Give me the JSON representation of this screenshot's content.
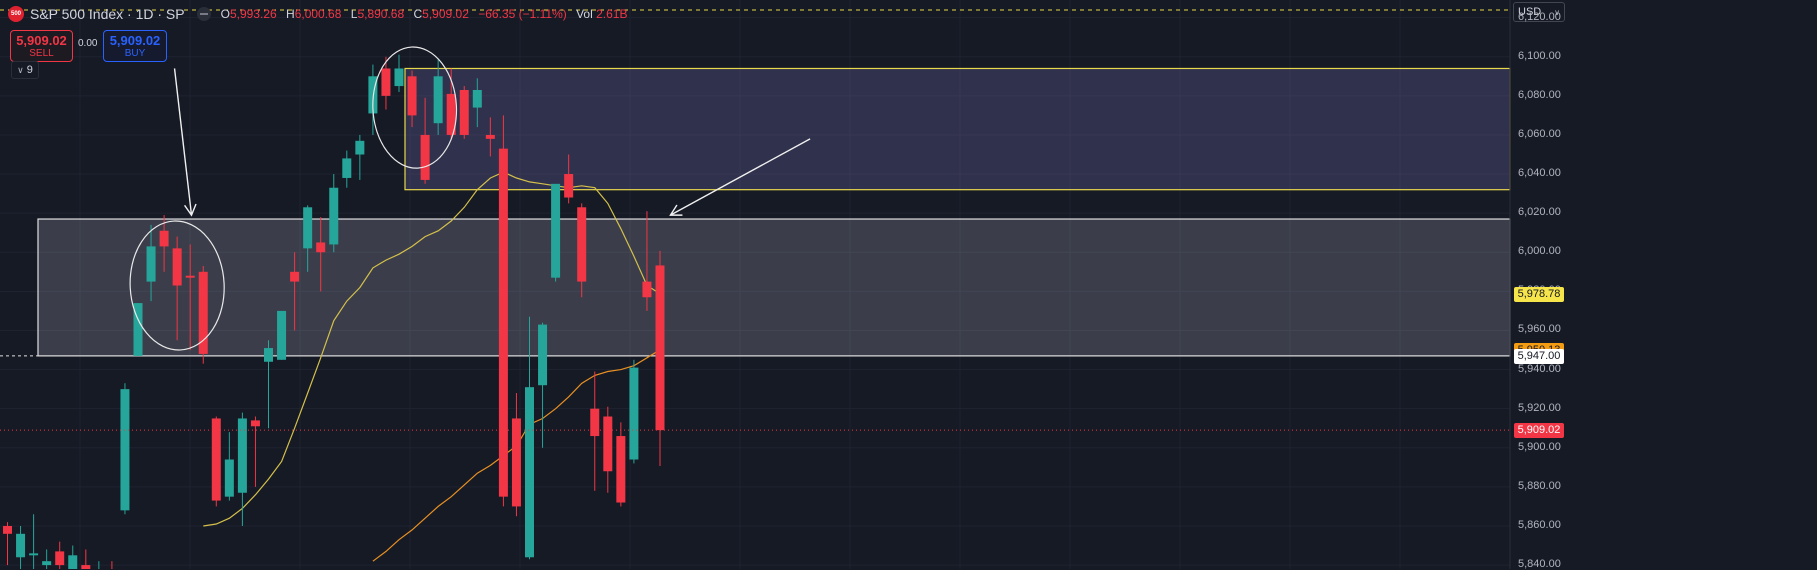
{
  "header": {
    "logo_text": "500",
    "symbol_title": "S&P 500 Index · 1D · SP",
    "ohlc": {
      "o_label": "O",
      "o_value": "5,993.26",
      "h_label": "H",
      "h_value": "6,000.68",
      "l_label": "L",
      "l_value": "5,890.68",
      "c_label": "C",
      "c_value": "5,909.02",
      "change": "−66.35 (−1.11%)",
      "vol_label": "Vol",
      "vol_value": "2.61B"
    }
  },
  "trade": {
    "sell_price": "5,909.02",
    "sell_label": "SELL",
    "spread": "0.00",
    "buy_price": "5,909.02",
    "buy_label": "BUY"
  },
  "indicators_count": "9",
  "currency": "USD",
  "colors": {
    "background": "#161a25",
    "up": "#26a69a",
    "down": "#f23645",
    "ma_fast": "#d4c04a",
    "ma_slow": "#e89022",
    "zone_upper_border": "#e8d84c",
    "zone_lower_border": "#e0e0e0"
  },
  "price_axis": {
    "ticks": [
      "6,120.00",
      "6,100.00",
      "6,080.00",
      "6,060.00",
      "6,040.00",
      "6,020.00",
      "6,000.00",
      "5,980.00",
      "5,960.00",
      "5,940.00",
      "5,920.00",
      "5,900.00",
      "5,880.00",
      "5,860.00",
      "5,840.00"
    ],
    "labels": [
      {
        "text": "5,978.78",
        "value": 5978.78,
        "bg": "#f5e44a",
        "fg": "#131722"
      },
      {
        "text": "5,950.13",
        "value": 5950.13,
        "bg": "#f39c12",
        "fg": "#131722"
      },
      {
        "text": "5,947.00",
        "value": 5947.0,
        "bg": "#ffffff",
        "fg": "#131722"
      },
      {
        "text": "5,909.02",
        "value": 5909.02,
        "bg": "#f23645",
        "fg": "#ffffff"
      }
    ]
  },
  "chart_data": {
    "type": "candlestick",
    "ylim": [
      5838,
      6128
    ],
    "last_price": 5909.02,
    "zones": [
      {
        "name": "upper-zone",
        "from": 6032,
        "to": 6094
      },
      {
        "name": "lower-zone",
        "from": 5947,
        "to": 6017
      }
    ],
    "candles": [
      {
        "o": 5860,
        "h": 5862,
        "l": 5840,
        "c": 5856
      },
      {
        "o": 5844,
        "h": 5860,
        "l": 5835,
        "c": 5856
      },
      {
        "o": 5845,
        "h": 5866,
        "l": 5836,
        "c": 5846
      },
      {
        "o": 5840,
        "h": 5848,
        "l": 5832,
        "c": 5842
      },
      {
        "o": 5847,
        "h": 5852,
        "l": 5835,
        "c": 5840
      },
      {
        "o": 5835,
        "h": 5850,
        "l": 5830,
        "c": 5845
      },
      {
        "o": 5840,
        "h": 5848,
        "l": 5830,
        "c": 5836
      },
      {
        "o": 5832,
        "h": 5842,
        "l": 5825,
        "c": 5838
      },
      {
        "o": 5835,
        "h": 5842,
        "l": 5828,
        "c": 5834
      },
      {
        "o": 5868,
        "h": 5933,
        "l": 5866,
        "c": 5930
      },
      {
        "o": 5947,
        "h": 5974,
        "l": 5947,
        "c": 5974
      },
      {
        "o": 5985,
        "h": 6014,
        "l": 5975,
        "c": 6003
      },
      {
        "o": 6011,
        "h": 6019,
        "l": 5990,
        "c": 6003
      },
      {
        "o": 6002,
        "h": 6008,
        "l": 5955,
        "c": 5983
      },
      {
        "o": 5988,
        "h": 6004,
        "l": 5950,
        "c": 5987
      },
      {
        "o": 5990,
        "h": 5993,
        "l": 5943,
        "c": 5948
      },
      {
        "o": 5915,
        "h": 5916,
        "l": 5870,
        "c": 5873
      },
      {
        "o": 5875,
        "h": 5908,
        "l": 5873,
        "c": 5894
      },
      {
        "o": 5877,
        "h": 5918,
        "l": 5860,
        "c": 5915
      },
      {
        "o": 5914,
        "h": 5916,
        "l": 5880,
        "c": 5911
      },
      {
        "o": 5944,
        "h": 5955,
        "l": 5910,
        "c": 5951
      },
      {
        "o": 5945,
        "h": 5968,
        "l": 5945,
        "c": 5970
      },
      {
        "o": 5990,
        "h": 6000,
        "l": 5960,
        "c": 5985
      },
      {
        "o": 6002,
        "h": 6024,
        "l": 5990,
        "c": 6023
      },
      {
        "o": 6005,
        "h": 6018,
        "l": 5980,
        "c": 6000
      },
      {
        "o": 6004,
        "h": 6040,
        "l": 6000,
        "c": 6033
      },
      {
        "o": 6038,
        "h": 6052,
        "l": 6033,
        "c": 6048
      },
      {
        "o": 6050,
        "h": 6060,
        "l": 6037,
        "c": 6057
      },
      {
        "o": 6071,
        "h": 6096,
        "l": 6060,
        "c": 6090
      },
      {
        "o": 6094,
        "h": 6100,
        "l": 6073,
        "c": 6080
      },
      {
        "o": 6085,
        "h": 6101,
        "l": 6082,
        "c": 6094
      },
      {
        "o": 6090,
        "h": 6093,
        "l": 6064,
        "c": 6070
      },
      {
        "o": 6060,
        "h": 6079,
        "l": 6035,
        "c": 6037
      },
      {
        "o": 6066,
        "h": 6099,
        "l": 6060,
        "c": 6090
      },
      {
        "o": 6081,
        "h": 6094,
        "l": 6058,
        "c": 6060
      },
      {
        "o": 6083,
        "h": 6085,
        "l": 6058,
        "c": 6060
      },
      {
        "o": 6074,
        "h": 6089,
        "l": 6064,
        "c": 6083
      },
      {
        "o": 6060,
        "h": 6069,
        "l": 6049,
        "c": 6058
      },
      {
        "o": 6053,
        "h": 6070,
        "l": 5870,
        "c": 5875
      },
      {
        "o": 5915,
        "h": 5928,
        "l": 5865,
        "c": 5870
      },
      {
        "o": 5844,
        "h": 5967,
        "l": 5843,
        "c": 5931
      },
      {
        "o": 5932,
        "h": 5964,
        "l": 5900,
        "c": 5963
      },
      {
        "o": 5987,
        "h": 6034,
        "l": 5985,
        "c": 6035
      },
      {
        "o": 6040,
        "h": 6050,
        "l": 6025,
        "c": 6028
      },
      {
        "o": 6023,
        "h": 6025,
        "l": 5977,
        "c": 5985
      },
      {
        "o": 5920,
        "h": 5939,
        "l": 5878,
        "c": 5906
      },
      {
        "o": 5916,
        "h": 5921,
        "l": 5877,
        "c": 5888
      },
      {
        "o": 5906,
        "h": 5913,
        "l": 5870,
        "c": 5872
      },
      {
        "o": 5894,
        "h": 5945,
        "l": 5892,
        "c": 5941
      },
      {
        "o": 5985,
        "h": 6021,
        "l": 5970,
        "c": 5977
      },
      {
        "o": 5993.26,
        "h": 6000.68,
        "l": 5890.68,
        "c": 5909.02
      }
    ],
    "ma_fast": [
      [
        15,
        5860
      ],
      [
        16,
        5861
      ],
      [
        17,
        5864
      ],
      [
        18,
        5869
      ],
      [
        19,
        5876
      ],
      [
        20,
        5884
      ],
      [
        21,
        5893
      ],
      [
        22,
        5910
      ],
      [
        23,
        5928
      ],
      [
        24,
        5946
      ],
      [
        25,
        5965
      ],
      [
        26,
        5975
      ],
      [
        27,
        5982
      ],
      [
        28,
        5992
      ],
      [
        29,
        5996
      ],
      [
        30,
        5999
      ],
      [
        31,
        6003
      ],
      [
        32,
        6008
      ],
      [
        33,
        6011
      ],
      [
        34,
        6016
      ],
      [
        35,
        6023
      ],
      [
        36,
        6032
      ],
      [
        37,
        6038
      ],
      [
        38,
        6041
      ],
      [
        39,
        6038
      ],
      [
        40,
        6036
      ],
      [
        41,
        6035
      ],
      [
        42,
        6034
      ],
      [
        43,
        6033
      ],
      [
        44,
        6034
      ],
      [
        45,
        6033
      ],
      [
        46,
        6025
      ],
      [
        47,
        6012
      ],
      [
        48,
        5998
      ],
      [
        49,
        5983
      ],
      [
        50,
        5978.78
      ]
    ],
    "ma_slow": [
      [
        28,
        5842
      ],
      [
        29,
        5847
      ],
      [
        30,
        5853
      ],
      [
        31,
        5858
      ],
      [
        32,
        5864
      ],
      [
        33,
        5870
      ],
      [
        34,
        5875
      ],
      [
        35,
        5881
      ],
      [
        36,
        5887
      ],
      [
        37,
        5891
      ],
      [
        38,
        5896
      ],
      [
        39,
        5901
      ],
      [
        40,
        5912
      ],
      [
        41,
        5915
      ],
      [
        42,
        5920
      ],
      [
        43,
        5926
      ],
      [
        44,
        5933
      ],
      [
        45,
        5937
      ],
      [
        46,
        5939
      ],
      [
        47,
        5940
      ],
      [
        48,
        5942
      ],
      [
        49,
        5946
      ],
      [
        50,
        5950.13
      ]
    ],
    "drawings": {
      "ellipses": [
        {
          "name": "left-ellipse",
          "cx_index": 13.0,
          "cy": 5983,
          "rx_index": 3.6,
          "ry": 33
        },
        {
          "name": "top-ellipse",
          "cx_index": 31.2,
          "cy": 6074,
          "rx_index": 3.2,
          "ry": 31
        }
      ],
      "arrows": [
        {
          "name": "down-arrow",
          "from_index": 12.8,
          "from_price": 6094,
          "to_index": 14.1,
          "to_price": 6019
        },
        {
          "name": "left-arrow",
          "from_index": 61.5,
          "from_price": 6058,
          "to_index": 50.8,
          "to_price": 6019
        }
      ]
    }
  }
}
